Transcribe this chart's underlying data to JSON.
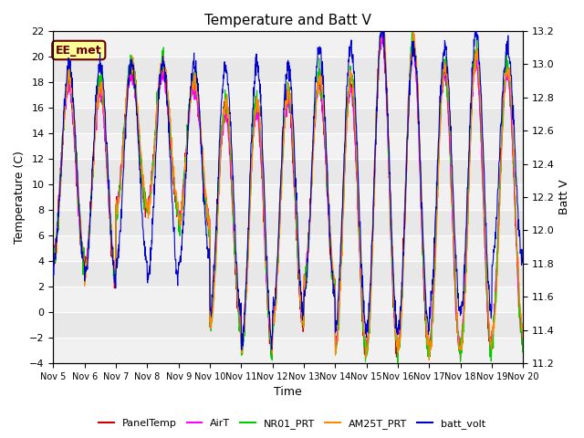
{
  "title": "Temperature and Batt V",
  "xlabel": "Time",
  "ylabel_left": "Temperature (C)",
  "ylabel_right": "Batt V",
  "ylim_left": [
    -4,
    22
  ],
  "ylim_right": [
    11.2,
    13.2
  ],
  "yticks_left": [
    -4,
    -2,
    0,
    2,
    4,
    6,
    8,
    10,
    12,
    14,
    16,
    18,
    20,
    22
  ],
  "yticks_right": [
    11.2,
    11.4,
    11.6,
    11.8,
    12.0,
    12.2,
    12.4,
    12.6,
    12.8,
    13.0,
    13.2
  ],
  "xtick_labels": [
    "Nov 5",
    "Nov 6",
    "Nov 7",
    "Nov 8",
    "Nov 9",
    "Nov 10",
    "Nov 11",
    "Nov 12",
    "Nov 13",
    "Nov 14",
    "Nov 15",
    "Nov 16",
    "Nov 17",
    "Nov 18",
    "Nov 19",
    "Nov 20"
  ],
  "series_colors": {
    "PanelTemp": "#cc0000",
    "AirT": "#ff00ff",
    "NR01_PRT": "#00cc00",
    "AM25T_PRT": "#ff8800",
    "batt_volt": "#0000cc"
  },
  "annotation_text": "EE_met",
  "annotation_fgcolor": "#660000",
  "annotation_bgcolor": "#ffff99",
  "plot_bg_color": "#e8e8e8",
  "grid_band_color": "#d0d0d0",
  "temp_min": -4,
  "temp_max": 22,
  "batt_min": 11.2,
  "batt_max": 13.2
}
